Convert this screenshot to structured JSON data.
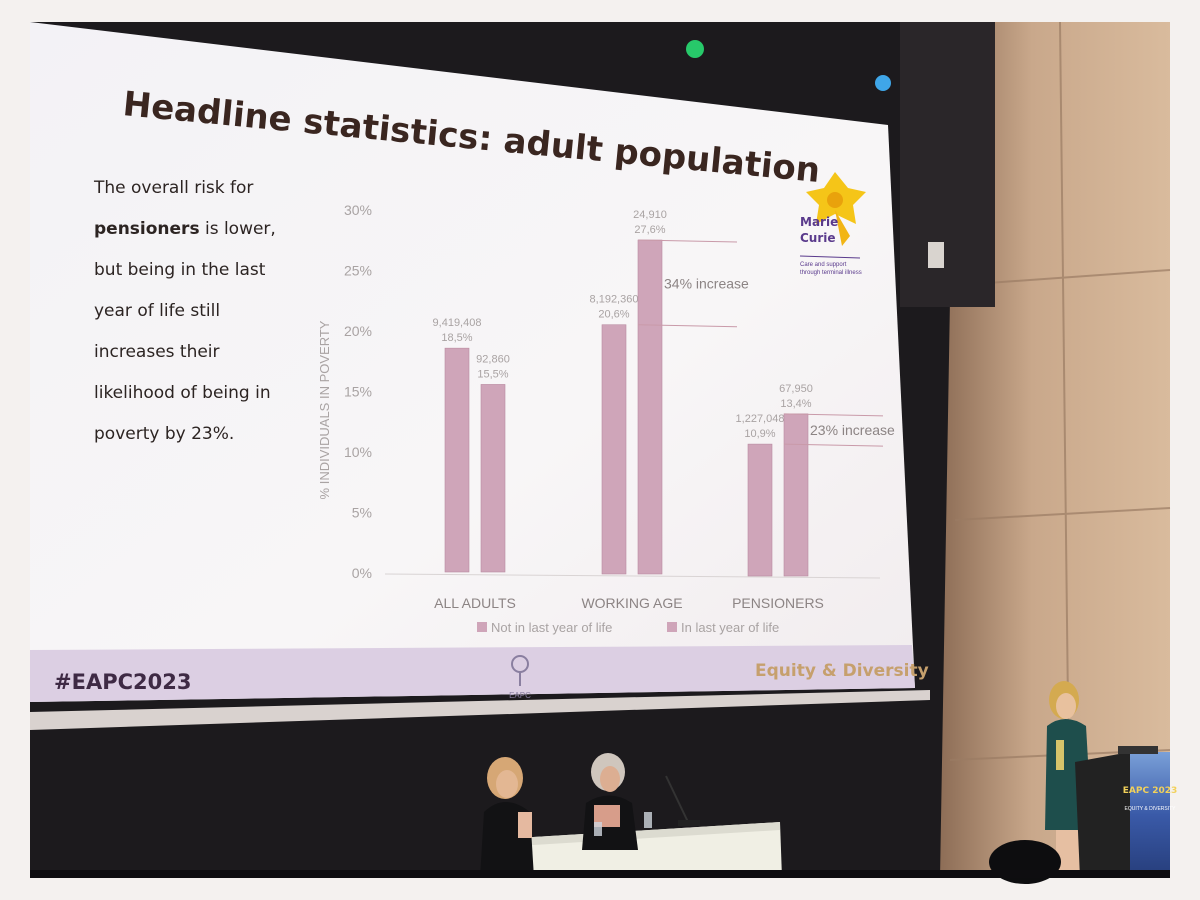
{
  "slide": {
    "title": "Headline statistics: adult population",
    "body_lines": [
      {
        "pre": "The overall risk for",
        "bold": "",
        "post": ""
      },
      {
        "pre": "",
        "bold": "pensioners",
        "post": " is lower,"
      },
      {
        "pre": "but being in the last",
        "bold": "",
        "post": ""
      },
      {
        "pre": "year of life still",
        "bold": "",
        "post": ""
      },
      {
        "pre": "increases their",
        "bold": "",
        "post": ""
      },
      {
        "pre": "likelihood of being in",
        "bold": "",
        "post": ""
      },
      {
        "pre": "poverty by 23%.",
        "bold": "",
        "post": ""
      }
    ],
    "logo": {
      "line1": "Marie",
      "line2": "Curie",
      "tagline1": "Care and support",
      "tagline2": "through terminal illness",
      "icon": "daffodil-icon"
    },
    "footer": {
      "hashtag": "#EAPC2023",
      "theme": "Equity & Diversity",
      "center_logo": "EAPC",
      "center_icon": "eapc-figure-icon"
    }
  },
  "chart_data": {
    "type": "bar",
    "ylabel": "% INDIVIDUALS IN POVERTY",
    "yticks": [
      "0%",
      "5%",
      "10%",
      "15%",
      "20%",
      "25%",
      "30%"
    ],
    "ylim": [
      0,
      30
    ],
    "categories": [
      "ALL ADULTS",
      "WORKING AGE",
      "PENSIONERS"
    ],
    "series": [
      {
        "name": "Not in last year of life",
        "values": [
          18.5,
          20.6,
          10.9
        ],
        "counts": [
          "9,419,408",
          "8,192,360",
          "1,227,048"
        ],
        "pct_labels": [
          "18,5%",
          "20,6%",
          "10,9%"
        ]
      },
      {
        "name": "In last year of life",
        "values": [
          15.5,
          27.6,
          13.4
        ],
        "counts": [
          "92,860",
          "24,910",
          "67,950"
        ],
        "pct_labels": [
          "15,5%",
          "27,6%",
          "13,4%"
        ]
      }
    ],
    "annotations": [
      {
        "category": "WORKING AGE",
        "text": "34% increase"
      },
      {
        "category": "PENSIONERS",
        "text": "23% increase"
      }
    ],
    "legend_position": "bottom",
    "colors": {
      "bar": "#cfa5b9",
      "bar_edge": "#b98aa0",
      "text": "#a9a3a3"
    }
  },
  "stage": {
    "banner_line1": "EAPC 2023",
    "banner_line2": "EQUITY & DIVERSITY",
    "colors": {
      "screen": "#f7f5f6",
      "footer_band": "#dccfe3",
      "wall": "#c9a88b",
      "stage_dark": "#1c1a1d",
      "banner": "#3a5aa8"
    }
  }
}
